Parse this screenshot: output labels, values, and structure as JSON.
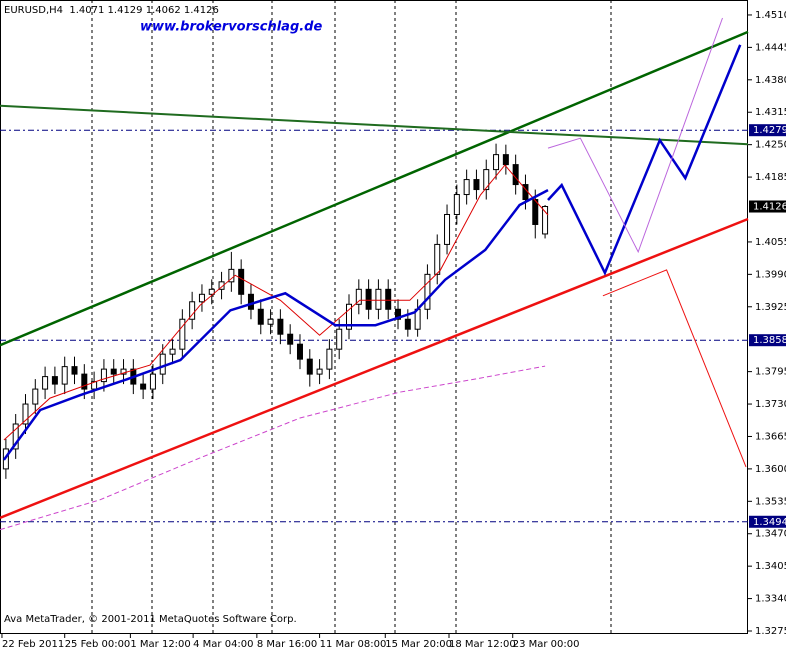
{
  "chart_data": {
    "type": "candlestick",
    "title": "EURUSD,H4  1.4071 1.4129 1.4062 1.4126",
    "watermark": "www.brokervorschlag.de",
    "footer": "Ava MetaTrader, © 2001-2011 MetaQuotes Software Corp.",
    "xlim": [
      -0.6,
      75.7
    ],
    "ylim": [
      1.3269,
      1.454
    ],
    "xticks": [
      {
        "value": -0.4,
        "label": "22 Feb 2011"
      },
      {
        "value": 6.0,
        "label": "25 Feb 00:00"
      },
      {
        "value": 12.7,
        "label": "1 Mar 12:00"
      },
      {
        "value": 19.1,
        "label": "4 Mar 04:00"
      },
      {
        "value": 25.6,
        "label": "8 Mar 16:00"
      },
      {
        "value": 32.0,
        "label": "11 Mar 08:00"
      },
      {
        "value": 38.7,
        "label": "15 Mar 20:00"
      },
      {
        "value": 45.2,
        "label": "18 Mar 12:00"
      },
      {
        "value": 51.7,
        "label": "23 Mar 00:00"
      }
    ],
    "yticks": [
      {
        "value": 1.451,
        "label": "1.4510"
      },
      {
        "value": 1.4445,
        "label": "1.4445"
      },
      {
        "value": 1.438,
        "label": "1.4380"
      },
      {
        "value": 1.4315,
        "label": "1.4315"
      },
      {
        "value": 1.425,
        "label": "1.4250"
      },
      {
        "value": 1.4185,
        "label": "1.4185"
      },
      {
        "value": 1.4055,
        "label": "1.4055"
      },
      {
        "value": 1.399,
        "label": "1.3990"
      },
      {
        "value": 1.3925,
        "label": "1.3925"
      },
      {
        "value": 1.3795,
        "label": "1.3795"
      },
      {
        "value": 1.373,
        "label": "1.3730"
      },
      {
        "value": 1.3665,
        "label": "1.3665"
      },
      {
        "value": 1.36,
        "label": "1.3600"
      },
      {
        "value": 1.3535,
        "label": "1.3535"
      },
      {
        "value": 1.347,
        "label": "1.3470"
      },
      {
        "value": 1.3405,
        "label": "1.3405"
      },
      {
        "value": 1.334,
        "label": "1.3340"
      },
      {
        "value": 1.3275,
        "label": "1.3275"
      }
    ],
    "levels": [
      {
        "value": 1.4279,
        "label": "1.4279",
        "color": "#000080",
        "line": true
      },
      {
        "value": 1.4126,
        "label": "1.4126",
        "color": "#000000",
        "line": false
      },
      {
        "value": 1.3858,
        "label": "1.3858",
        "color": "#000080",
        "line": true
      },
      {
        "value": 1.3494,
        "label": "1.3494",
        "color": "#000080",
        "line": true
      }
    ],
    "candles": {
      "open": [
        1.36,
        1.364,
        1.369,
        1.373,
        1.376,
        1.3785,
        1.377,
        1.3805,
        1.379,
        1.376,
        1.3775,
        1.38,
        1.379,
        1.38,
        1.377,
        1.376,
        1.379,
        1.383,
        1.384,
        1.39,
        1.3935,
        1.395,
        1.396,
        1.3975,
        1.4,
        1.395,
        1.392,
        1.389,
        1.39,
        1.387,
        1.385,
        1.382,
        1.379,
        1.38,
        1.384,
        1.388,
        1.393,
        1.396,
        1.392,
        1.396,
        1.392,
        1.39,
        1.388,
        1.392,
        1.399,
        1.405,
        1.411,
        1.415,
        1.418,
        1.416,
        1.42,
        1.423,
        1.421,
        1.417,
        1.414,
        1.4071
      ],
      "high": [
        1.366,
        1.371,
        1.375,
        1.378,
        1.3805,
        1.3805,
        1.3825,
        1.3825,
        1.381,
        1.3795,
        1.382,
        1.382,
        1.382,
        1.382,
        1.379,
        1.381,
        1.385,
        1.386,
        1.392,
        1.3955,
        1.397,
        1.398,
        1.3995,
        1.4035,
        1.402,
        1.397,
        1.394,
        1.392,
        1.392,
        1.389,
        1.387,
        1.384,
        1.382,
        1.386,
        1.39,
        1.395,
        1.398,
        1.398,
        1.398,
        1.398,
        1.394,
        1.392,
        1.394,
        1.401,
        1.407,
        1.413,
        1.417,
        1.42,
        1.42,
        1.422,
        1.4252,
        1.425,
        1.423,
        1.419,
        1.416,
        1.4129
      ],
      "low": [
        1.358,
        1.362,
        1.367,
        1.371,
        1.374,
        1.375,
        1.375,
        1.377,
        1.374,
        1.374,
        1.3755,
        1.377,
        1.377,
        1.375,
        1.374,
        1.374,
        1.377,
        1.381,
        1.382,
        1.388,
        1.3915,
        1.393,
        1.394,
        1.3955,
        1.393,
        1.39,
        1.387,
        1.387,
        1.385,
        1.383,
        1.38,
        1.3765,
        1.377,
        1.378,
        1.382,
        1.386,
        1.391,
        1.39,
        1.39,
        1.39,
        1.388,
        1.3865,
        1.3865,
        1.39,
        1.397,
        1.403,
        1.409,
        1.413,
        1.414,
        1.414,
        1.418,
        1.419,
        1.415,
        1.412,
        1.4062,
        1.4062
      ],
      "close": [
        1.364,
        1.369,
        1.373,
        1.376,
        1.3785,
        1.377,
        1.3805,
        1.379,
        1.376,
        1.3775,
        1.38,
        1.379,
        1.38,
        1.377,
        1.376,
        1.379,
        1.383,
        1.384,
        1.39,
        1.3935,
        1.395,
        1.396,
        1.3975,
        1.4,
        1.395,
        1.392,
        1.389,
        1.39,
        1.387,
        1.385,
        1.382,
        1.379,
        1.38,
        1.384,
        1.388,
        1.393,
        1.396,
        1.392,
        1.396,
        1.392,
        1.39,
        1.388,
        1.392,
        1.399,
        1.405,
        1.411,
        1.415,
        1.418,
        1.416,
        1.42,
        1.423,
        1.421,
        1.417,
        1.414,
        1.409,
        1.4126
      ]
    },
    "overlays": [
      {
        "color": "#cc44cc",
        "width": 1,
        "dash": true,
        "x": [
          -0.6,
          9.6,
          19.8,
          30,
          40.2,
          48.4,
          55
        ],
        "values": [
          1.3478,
          1.3538,
          1.3622,
          1.3702,
          1.3754,
          1.3782,
          1.3806
        ]
      },
      {
        "color": "#dd0000",
        "width": 1,
        "dash": false,
        "x": [
          -0.2,
          4.5,
          9.6,
          14.7,
          19.8,
          23.4,
          28,
          32,
          36.1,
          41.2,
          44.3,
          48.4,
          50.9,
          53.5,
          55.3
        ],
        "values": [
          1.3658,
          1.3742,
          1.3778,
          1.3808,
          1.3928,
          1.3988,
          1.3938,
          1.3868,
          1.3938,
          1.3938,
          1.3998,
          1.4149,
          1.4209,
          1.4149,
          1.4109
        ]
      },
      {
        "color": "#0000cc",
        "width": 2.5,
        "dash": false,
        "x": [
          -0.2,
          3.5,
          7.6,
          12.7,
          17.8,
          22.9,
          28.5,
          33.6,
          37.7,
          41.7,
          44.8,
          48.9,
          52.4,
          55.3
        ],
        "values": [
          1.3618,
          1.3718,
          1.3748,
          1.3782,
          1.3818,
          1.3918,
          1.3952,
          1.3888,
          1.3888,
          1.3914,
          1.3979,
          1.4039,
          1.4129,
          1.4159
        ]
      },
      {
        "color": "#006400",
        "width": 2.5,
        "dash": false,
        "x": [
          -0.6,
          75.7
        ],
        "values": [
          1.3848,
          1.4476
        ]
      },
      {
        "color": "#1f6b1f",
        "width": 2,
        "dash": false,
        "x": [
          -0.6,
          75.7
        ],
        "values": [
          1.4328,
          1.4251
        ]
      },
      {
        "color": "#ee1111",
        "width": 2.5,
        "dash": false,
        "x": [
          -0.6,
          75.7
        ],
        "values": [
          1.3502,
          1.4101
        ]
      },
      {
        "color": "#0000cc",
        "width": 2.5,
        "dash": false,
        "x": [
          55.3,
          56.7,
          61.1,
          66.7,
          69.3,
          74.9
        ],
        "values": [
          1.4139,
          1.4169,
          1.3993,
          1.4259,
          1.4183,
          1.445
        ]
      },
      {
        "color": "#bb66dd",
        "width": 1,
        "dash": false,
        "x": [
          55.3,
          58.6,
          64.5,
          73.1
        ],
        "values": [
          1.4243,
          1.4263,
          1.4035,
          1.4504
        ]
      },
      {
        "color": "#ee1111",
        "width": 1,
        "dash": false,
        "x": [
          60.9,
          67.4,
          75.5
        ],
        "values": [
          1.3947,
          1.3999,
          1.3604
        ]
      }
    ]
  }
}
